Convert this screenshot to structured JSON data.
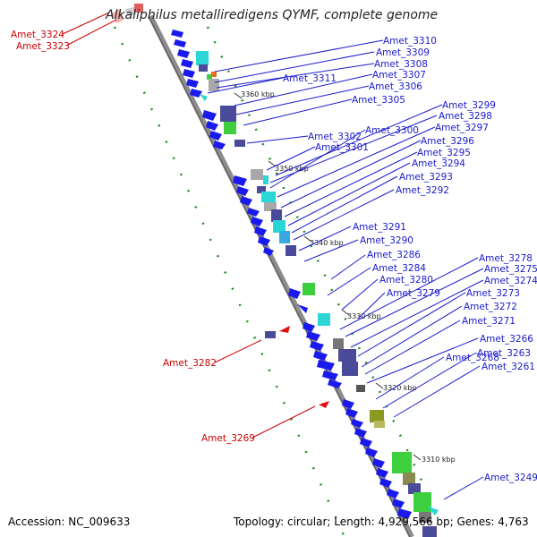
{
  "title": "Alkaliphilus metalliredigens QYMF, complete genome",
  "footer": {
    "accession": "Accession: NC_009633",
    "summary": "Topology: circular; Length: 4,929,566 bp; Genes: 4,763"
  },
  "colors": {
    "label_blue": "#1a1acc",
    "label_red": "#cc0000",
    "backbone": "#8c8c8c",
    "gc_dots": "#2a8a2a",
    "cds_blue": "#1a1aee",
    "cds_navy": "#4a4a9a",
    "cds_green": "#3ecf3e",
    "cds_cyan": "#2ad6d6",
    "cds_gray": "#a8a8a8"
  },
  "scale_marks": [
    "3360 kbp",
    "3350 kbp",
    "3340 kbp",
    "3330 kbp",
    "3320 kbp",
    "3310 kbp"
  ],
  "labels_right": [
    "Amet_3310",
    "Amet_3309",
    "Amet_3308",
    "Amet_3307",
    "Amet_3311",
    "Amet_3306",
    "Amet_3305",
    "Amet_3299",
    "Amet_3298",
    "Amet_3300",
    "Amet_3302",
    "Amet_3297",
    "Amet_3296",
    "Amet_3301",
    "Amet_3295",
    "Amet_3294",
    "Amet_3293",
    "Amet_3292",
    "Amet_3291",
    "Amet_3290",
    "Amet_3286",
    "Amet_3278",
    "Amet_3284",
    "Amet_3275",
    "Amet_3280",
    "Amet_3274",
    "Amet_3279",
    "Amet_3273",
    "Amet_3272",
    "Amet_3271",
    "Amet_3266",
    "Amet_3268",
    "Amet_3263",
    "Amet_3261",
    "Amet_3249"
  ],
  "labels_left": [
    "Amet_3324",
    "Amet_3323",
    "Amet_3282",
    "Amet_3269"
  ]
}
